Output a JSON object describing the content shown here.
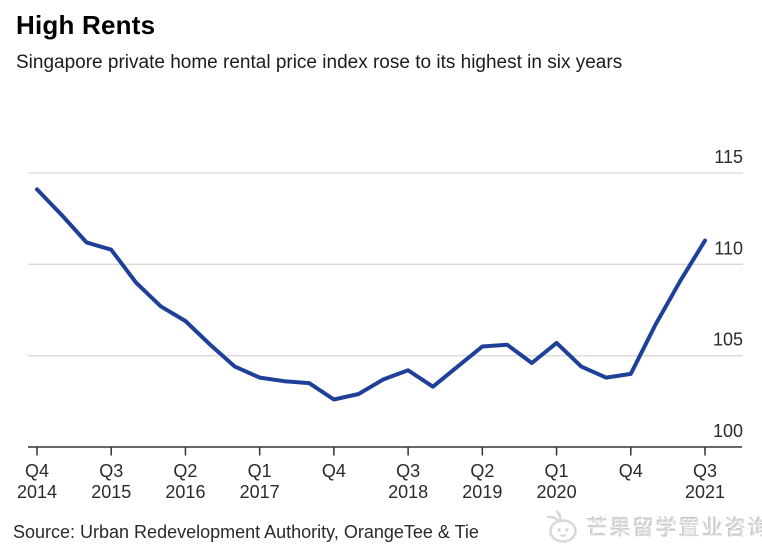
{
  "header": {
    "title": "High Rents",
    "subtitle": "Singapore private home rental price index rose to its highest in six years"
  },
  "chart_data": {
    "type": "line",
    "title": "High Rents",
    "subtitle": "Singapore private home rental price index rose to its highest in six years",
    "xlabel": "",
    "ylabel": "",
    "ylim": [
      100,
      115
    ],
    "y_ticks": [
      100,
      105,
      110,
      115
    ],
    "y_axis_side": "right",
    "grid": "horizontal",
    "categories": [
      "Q4 2014",
      "Q1 2015",
      "Q2 2015",
      "Q3 2015",
      "Q4 2015",
      "Q1 2016",
      "Q2 2016",
      "Q3 2016",
      "Q4 2016",
      "Q1 2017",
      "Q2 2017",
      "Q3 2017",
      "Q4 2017",
      "Q1 2018",
      "Q2 2018",
      "Q3 2018",
      "Q4 2018",
      "Q1 2019",
      "Q2 2019",
      "Q3 2019",
      "Q4 2019",
      "Q1 2020",
      "Q2 2020",
      "Q3 2020",
      "Q4 2020",
      "Q1 2021",
      "Q2 2021",
      "Q3 2021"
    ],
    "series": [
      {
        "name": "Singapore private home rental price index",
        "values": [
          114.1,
          112.7,
          111.2,
          110.8,
          109.0,
          107.7,
          106.9,
          105.6,
          104.4,
          103.8,
          103.6,
          103.5,
          102.6,
          102.9,
          103.7,
          104.2,
          103.3,
          104.4,
          105.5,
          105.6,
          104.6,
          105.7,
          104.4,
          103.8,
          104.0,
          106.7,
          109.1,
          111.3
        ]
      }
    ],
    "x_ticks": [
      {
        "index": 0,
        "quarter": "Q4",
        "year": "2014"
      },
      {
        "index": 3,
        "quarter": "Q3",
        "year": "2015"
      },
      {
        "index": 6,
        "quarter": "Q2",
        "year": "2016"
      },
      {
        "index": 9,
        "quarter": "Q1",
        "year": "2017"
      },
      {
        "index": 12,
        "quarter": "Q4",
        "year": ""
      },
      {
        "index": 15,
        "quarter": "Q3",
        "year": "2018"
      },
      {
        "index": 18,
        "quarter": "Q2",
        "year": "2019"
      },
      {
        "index": 21,
        "quarter": "Q1",
        "year": "2020"
      },
      {
        "index": 24,
        "quarter": "Q4",
        "year": ""
      },
      {
        "index": 27,
        "quarter": "Q3",
        "year": "2021"
      }
    ],
    "colors": {
      "line": "#1f4098",
      "grid": "#d9d9d9",
      "axis": "#333333",
      "tick_label": "#2b2b2b"
    },
    "legend": "none"
  },
  "footer": {
    "source": "Source: Urban Redevelopment Authority, OrangeTee & Tie",
    "watermark": "芒果留学置业咨询"
  }
}
